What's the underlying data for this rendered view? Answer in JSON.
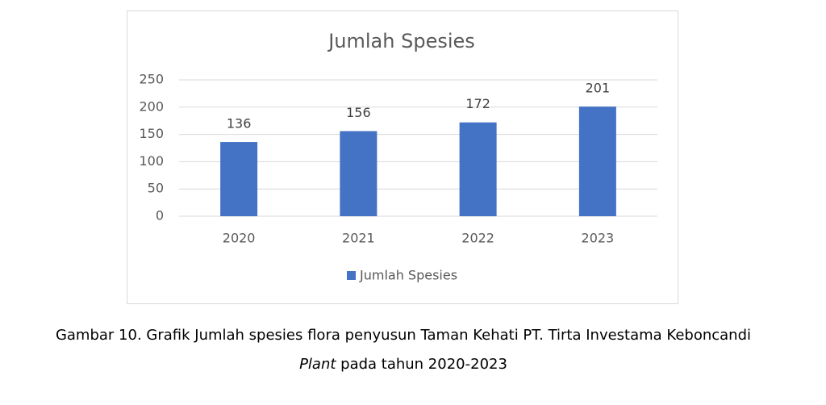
{
  "chart_data": {
    "type": "bar",
    "title": "Jumlah Spesies",
    "categories": [
      "2020",
      "2021",
      "2022",
      "2023"
    ],
    "series": [
      {
        "name": "Jumlah Spesies",
        "color": "#4472c4",
        "values": [
          136,
          156,
          172,
          201
        ]
      }
    ],
    "ylim": [
      0,
      250
    ],
    "yticks": [
      0,
      50,
      100,
      150,
      200,
      250
    ],
    "grid": true,
    "legend": "bottom",
    "data_labels": true
  },
  "caption": {
    "line1": "Gambar 10. Grafik Jumlah spesies flora penyusun Taman Kehati PT. Tirta Investama Keboncandi",
    "line2_italic": "Plant",
    "line2_rest": " pada tahun 2020-2023"
  }
}
